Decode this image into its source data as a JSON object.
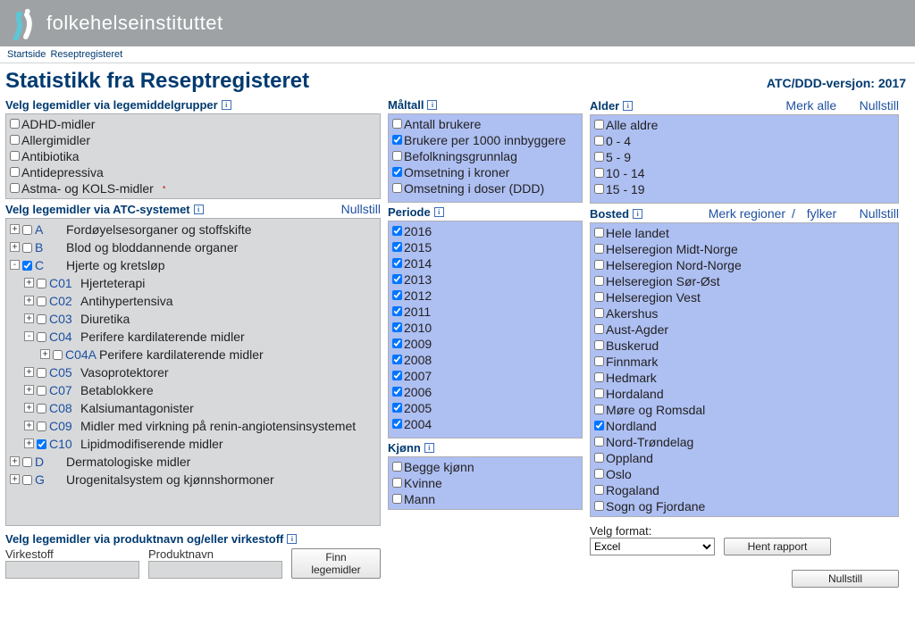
{
  "header": {
    "org_name": "folkehelseinstituttet",
    "logo_color": "#5ec6d6"
  },
  "breadcrumb": {
    "home": "Startside",
    "current": "Reseptregisteret"
  },
  "page_title": "Statistikk fra Reseptregisteret",
  "version_label": "ATC/DDD-versjon: 2017",
  "links": {
    "nullstill": "Nullstill",
    "merk_alle": "Merk alle",
    "merk_regioner": "Merk regioner",
    "fylker": "fylker"
  },
  "section_labels": {
    "drug_groups": "Velg legemidler via legemiddelgrupper",
    "atc": "Velg legemidler via ATC-systemet",
    "product": "Velg legemidler via produktnavn og/eller virkestoff",
    "maltall": "Måltall",
    "periode": "Periode",
    "kjonn": "Kjønn",
    "alder": "Alder",
    "bosted": "Bosted"
  },
  "drug_groups": [
    {
      "label": "ADHD-midler",
      "checked": false
    },
    {
      "label": "Allergimidler",
      "checked": false
    },
    {
      "label": "Antibiotika",
      "checked": false
    },
    {
      "label": "Antidepressiva",
      "checked": false
    },
    {
      "label": "Astma- og KOLS-midler",
      "checked": false,
      "marker": true
    }
  ],
  "atc_tree": [
    {
      "level": 0,
      "toggle": "+",
      "checked": false,
      "code": "A",
      "label": "Fordøyelsesorganer og stoffskifte"
    },
    {
      "level": 0,
      "toggle": "+",
      "checked": false,
      "code": "B",
      "label": "Blod og bloddannende organer"
    },
    {
      "level": 0,
      "toggle": "-",
      "checked": true,
      "code": "C",
      "label": "Hjerte og kretsløp"
    },
    {
      "level": 1,
      "toggle": "+",
      "checked": false,
      "code": "C01",
      "label": "Hjerteterapi"
    },
    {
      "level": 1,
      "toggle": "+",
      "checked": false,
      "code": "C02",
      "label": "Antihypertensiva"
    },
    {
      "level": 1,
      "toggle": "+",
      "checked": false,
      "code": "C03",
      "label": "Diuretika"
    },
    {
      "level": 1,
      "toggle": "-",
      "checked": false,
      "code": "C04",
      "label": "Perifere kardilaterende midler"
    },
    {
      "level": 2,
      "toggle": "+",
      "checked": false,
      "code": "C04A",
      "label": "Perifere kardilaterende midler"
    },
    {
      "level": 1,
      "toggle": "+",
      "checked": false,
      "code": "C05",
      "label": "Vasoprotektorer"
    },
    {
      "level": 1,
      "toggle": "+",
      "checked": false,
      "code": "C07",
      "label": "Betablokkere"
    },
    {
      "level": 1,
      "toggle": "+",
      "checked": false,
      "code": "C08",
      "label": "Kalsiumantagonister"
    },
    {
      "level": 1,
      "toggle": "+",
      "checked": false,
      "code": "C09",
      "label": "Midler med virkning på renin-angiotensinsystemet"
    },
    {
      "level": 1,
      "toggle": "+",
      "checked": true,
      "code": "C10",
      "label": "Lipidmodifiserende midler"
    },
    {
      "level": 0,
      "toggle": "+",
      "checked": false,
      "code": "D",
      "label": "Dermatologiske midler"
    },
    {
      "level": 0,
      "toggle": "+",
      "checked": false,
      "code": "G",
      "label": "Urogenitalsystem og kjønnshormoner"
    }
  ],
  "product_search": {
    "virkestoff_label": "Virkestoff",
    "produktnavn_label": "Produktnavn",
    "find_button": "Finn legemidler"
  },
  "maltall": [
    {
      "label": "Antall brukere",
      "checked": false
    },
    {
      "label": "Brukere per 1000 innbyggere",
      "checked": true
    },
    {
      "label": "Befolkningsgrunnlag",
      "checked": false
    },
    {
      "label": "Omsetning i kroner",
      "checked": true
    },
    {
      "label": "Omsetning i doser (DDD)",
      "checked": false
    }
  ],
  "periode": [
    {
      "label": "2016",
      "checked": true
    },
    {
      "label": "2015",
      "checked": true
    },
    {
      "label": "2014",
      "checked": true
    },
    {
      "label": "2013",
      "checked": true
    },
    {
      "label": "2012",
      "checked": true
    },
    {
      "label": "2011",
      "checked": true
    },
    {
      "label": "2010",
      "checked": true
    },
    {
      "label": "2009",
      "checked": true
    },
    {
      "label": "2008",
      "checked": true
    },
    {
      "label": "2007",
      "checked": true
    },
    {
      "label": "2006",
      "checked": true
    },
    {
      "label": "2005",
      "checked": true
    },
    {
      "label": "2004",
      "checked": true
    }
  ],
  "kjonn": [
    {
      "label": "Begge kjønn",
      "checked": false
    },
    {
      "label": "Kvinne",
      "checked": false
    },
    {
      "label": "Mann",
      "checked": false
    }
  ],
  "alder": [
    {
      "label": "Alle aldre",
      "checked": false
    },
    {
      "label": "0 - 4",
      "checked": false
    },
    {
      "label": "5 - 9",
      "checked": false
    },
    {
      "label": "10 - 14",
      "checked": false
    },
    {
      "label": "15 - 19",
      "checked": false
    }
  ],
  "bosted": [
    {
      "label": "Hele landet",
      "checked": false
    },
    {
      "label": "Helseregion Midt-Norge",
      "checked": false
    },
    {
      "label": "Helseregion Nord-Norge",
      "checked": false
    },
    {
      "label": "Helseregion Sør-Øst",
      "checked": false
    },
    {
      "label": "Helseregion Vest",
      "checked": false
    },
    {
      "label": "Akershus",
      "checked": false
    },
    {
      "label": "Aust-Agder",
      "checked": false
    },
    {
      "label": "Buskerud",
      "checked": false
    },
    {
      "label": "Finnmark",
      "checked": false
    },
    {
      "label": "Hedmark",
      "checked": false
    },
    {
      "label": "Hordaland",
      "checked": false
    },
    {
      "label": "Møre og Romsdal",
      "checked": false
    },
    {
      "label": "Nordland",
      "checked": true
    },
    {
      "label": "Nord-Trøndelag",
      "checked": false
    },
    {
      "label": "Oppland",
      "checked": false
    },
    {
      "label": "Oslo",
      "checked": false
    },
    {
      "label": "Rogaland",
      "checked": false
    },
    {
      "label": "Sogn og Fjordane",
      "checked": false
    }
  ],
  "output": {
    "format_label": "Velg format:",
    "format_selected": "Excel",
    "get_report": "Hent rapport",
    "nullstill": "Nullstill"
  },
  "colors": {
    "header_bg": "#9ea2a5",
    "brand_blue": "#003a70",
    "link_blue": "#1e50a0",
    "gray_box": "#d7d9db",
    "blue_box": "#aebff2",
    "logo_accent": "#5ec6d6"
  }
}
